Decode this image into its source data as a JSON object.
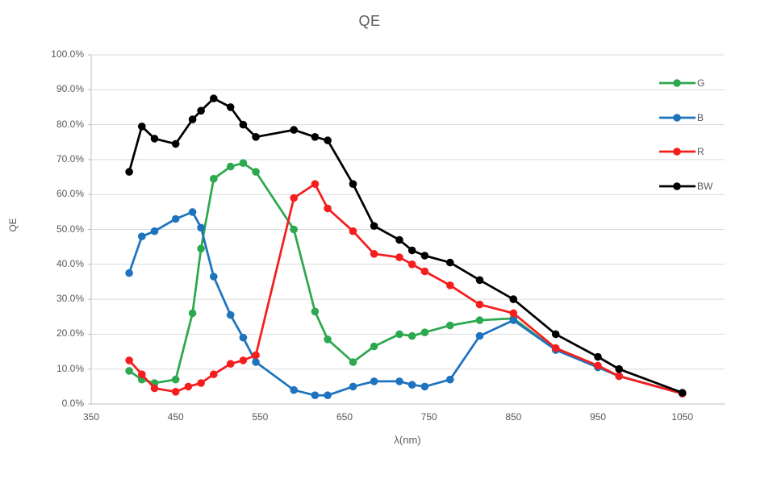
{
  "title": "QE",
  "axes": {
    "x_title": "λ(nm)",
    "y_title": "QE",
    "x_ticks": [
      "350",
      "450",
      "550",
      "650",
      "750",
      "850",
      "950",
      "1050"
    ],
    "y_ticks": [
      "100.0%",
      "90.0%",
      "80.0%",
      "70.0%",
      "60.0%",
      "50.0%",
      "40.0%",
      "30.0%",
      "20.0%",
      "10.0%",
      "0.0%"
    ]
  },
  "legend": [
    {
      "label": "G",
      "color": "#2ca84e"
    },
    {
      "label": "B",
      "color": "#1e73bf"
    },
    {
      "label": "R",
      "color": "#f51d1d"
    },
    {
      "label": "BW",
      "color": "#000000"
    }
  ],
  "colors": {
    "grid": "#d9d9d9",
    "axis": "#bfbfbf",
    "text": "#595959",
    "background": "#ffffff"
  },
  "chart_data": {
    "type": "line",
    "title": "QE",
    "xlabel": "λ(nm)",
    "ylabel": "QE",
    "x_unit": "nm",
    "y_unit": "percent",
    "xlim": [
      350,
      1100
    ],
    "ylim": [
      0,
      100
    ],
    "x_tick_values": [
      350,
      450,
      550,
      650,
      750,
      850,
      950,
      1050
    ],
    "y_tick_values": [
      0,
      10,
      20,
      30,
      40,
      50,
      60,
      70,
      80,
      90,
      100
    ],
    "grid": "horizontal",
    "legend_position": "inside-top-right",
    "marker": "circle",
    "series": [
      {
        "name": "G",
        "color": "#2ca84e",
        "points": [
          [
            395,
            9.5
          ],
          [
            410,
            7
          ],
          [
            425,
            6
          ],
          [
            450,
            7
          ],
          [
            470,
            26
          ],
          [
            480,
            44.5
          ],
          [
            495,
            64.5
          ],
          [
            515,
            68
          ],
          [
            530,
            69
          ],
          [
            545,
            66.5
          ],
          [
            590,
            50
          ],
          [
            615,
            26.5
          ],
          [
            630,
            18.5
          ],
          [
            660,
            12
          ],
          [
            685,
            16.5
          ],
          [
            715,
            20
          ],
          [
            730,
            19.5
          ],
          [
            745,
            20.5
          ],
          [
            775,
            22.5
          ],
          [
            810,
            24
          ],
          [
            850,
            24.5
          ],
          [
            900,
            15.5
          ],
          [
            950,
            10.5
          ],
          [
            975,
            8
          ],
          [
            1050,
            3
          ]
        ]
      },
      {
        "name": "B",
        "color": "#1e73bf",
        "points": [
          [
            395,
            37.5
          ],
          [
            410,
            48
          ],
          [
            425,
            49.5
          ],
          [
            450,
            53
          ],
          [
            470,
            55
          ],
          [
            480,
            50.5
          ],
          [
            495,
            36.5
          ],
          [
            515,
            25.5
          ],
          [
            530,
            19
          ],
          [
            545,
            12
          ],
          [
            590,
            4
          ],
          [
            615,
            2.5
          ],
          [
            630,
            2.5
          ],
          [
            660,
            5
          ],
          [
            685,
            6.5
          ],
          [
            715,
            6.5
          ],
          [
            730,
            5.5
          ],
          [
            745,
            5
          ],
          [
            775,
            7
          ],
          [
            810,
            19.5
          ],
          [
            850,
            24
          ],
          [
            900,
            15.5
          ],
          [
            950,
            10.5
          ],
          [
            975,
            8
          ],
          [
            1050,
            3
          ]
        ]
      },
      {
        "name": "R",
        "color": "#f51d1d",
        "points": [
          [
            395,
            12.5
          ],
          [
            410,
            8.5
          ],
          [
            425,
            4.5
          ],
          [
            450,
            3.5
          ],
          [
            465,
            5
          ],
          [
            480,
            6
          ],
          [
            495,
            8.5
          ],
          [
            515,
            11.5
          ],
          [
            530,
            12.5
          ],
          [
            545,
            14
          ],
          [
            590,
            59
          ],
          [
            615,
            63
          ],
          [
            630,
            56
          ],
          [
            660,
            49.5
          ],
          [
            685,
            43
          ],
          [
            715,
            42
          ],
          [
            730,
            40
          ],
          [
            745,
            38
          ],
          [
            775,
            34
          ],
          [
            810,
            28.5
          ],
          [
            850,
            26
          ],
          [
            900,
            16
          ],
          [
            950,
            11
          ],
          [
            975,
            8
          ],
          [
            1050,
            3
          ]
        ]
      },
      {
        "name": "BW",
        "color": "#000000",
        "points": [
          [
            395,
            66.5
          ],
          [
            410,
            79.5
          ],
          [
            425,
            76
          ],
          [
            450,
            74.5
          ],
          [
            470,
            81.5
          ],
          [
            480,
            84
          ],
          [
            495,
            87.5
          ],
          [
            515,
            85
          ],
          [
            530,
            80
          ],
          [
            545,
            76.5
          ],
          [
            590,
            78.5
          ],
          [
            615,
            76.5
          ],
          [
            630,
            75.5
          ],
          [
            660,
            63
          ],
          [
            685,
            51
          ],
          [
            715,
            47
          ],
          [
            730,
            44
          ],
          [
            745,
            42.5
          ],
          [
            775,
            40.5
          ],
          [
            810,
            35.5
          ],
          [
            850,
            30
          ],
          [
            900,
            20
          ],
          [
            950,
            13.5
          ],
          [
            975,
            10
          ],
          [
            1050,
            3.2
          ]
        ]
      }
    ]
  }
}
